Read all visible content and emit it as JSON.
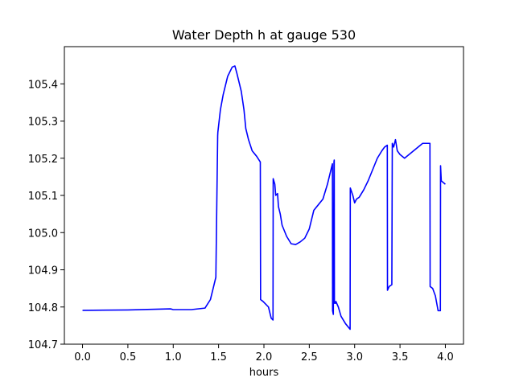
{
  "chart_data": {
    "type": "line",
    "title": "Water Depth h at gauge 530",
    "xlabel": "hours",
    "ylabel": "",
    "xlim": [
      -0.2,
      4.2
    ],
    "ylim": [
      104.7,
      105.5
    ],
    "xticks": [
      0.0,
      0.5,
      1.0,
      1.5,
      2.0,
      2.5,
      3.0,
      3.5,
      4.0
    ],
    "xtick_labels": [
      "0.0",
      "0.5",
      "1.0",
      "1.5",
      "2.0",
      "2.5",
      "3.0",
      "3.5",
      "4.0"
    ],
    "yticks": [
      104.7,
      104.8,
      104.9,
      105.0,
      105.1,
      105.2,
      105.3,
      105.4
    ],
    "ytick_labels": [
      "104.7",
      "104.8",
      "104.9",
      "105.0",
      "105.1",
      "105.2",
      "105.3",
      "105.4"
    ],
    "grid": false,
    "color": "#0000ff",
    "series": [
      {
        "x": [
          0.0,
          0.5,
          0.8,
          0.97,
          1.0,
          1.2,
          1.35,
          1.41,
          1.44,
          1.47,
          1.49,
          1.492,
          1.52,
          1.55,
          1.6,
          1.65,
          1.68,
          1.7,
          1.75,
          1.78,
          1.8,
          1.83,
          1.87,
          1.92,
          1.96,
          1.963,
          1.99,
          2.05,
          2.08,
          2.1,
          2.102,
          2.12,
          2.13,
          2.15,
          2.16,
          2.18,
          2.2,
          2.25,
          2.3,
          2.35,
          2.4,
          2.45,
          2.5,
          2.55,
          2.6,
          2.65,
          2.7,
          2.74,
          2.755,
          2.757,
          2.765,
          2.772,
          2.775,
          2.777,
          2.79,
          2.793,
          2.82,
          2.85,
          2.9,
          2.95,
          2.952,
          2.98,
          3.0,
          3.02,
          3.05,
          3.1,
          3.15,
          3.2,
          3.25,
          3.3,
          3.33,
          3.36,
          3.362,
          3.38,
          3.41,
          3.415,
          3.43,
          3.45,
          3.47,
          3.5,
          3.55,
          3.6,
          3.65,
          3.7,
          3.75,
          3.8,
          3.83,
          3.832,
          3.86,
          3.89,
          3.92,
          3.945,
          3.947,
          3.955,
          3.96,
          4.0
        ],
        "y": [
          104.791,
          104.792,
          104.794,
          104.795,
          104.793,
          104.793,
          104.797,
          104.82,
          104.85,
          104.88,
          105.26,
          105.27,
          105.33,
          105.37,
          105.42,
          105.445,
          105.448,
          105.43,
          105.38,
          105.33,
          105.28,
          105.25,
          105.22,
          105.205,
          105.19,
          104.82,
          104.815,
          104.8,
          104.77,
          104.765,
          105.145,
          105.13,
          105.1,
          105.105,
          105.07,
          105.05,
          105.02,
          104.99,
          104.97,
          104.968,
          104.975,
          104.985,
          105.01,
          105.06,
          105.075,
          105.09,
          105.13,
          105.17,
          105.185,
          104.79,
          104.78,
          105.19,
          105.195,
          104.81,
          104.81,
          104.815,
          104.8,
          104.775,
          104.755,
          104.74,
          105.12,
          105.1,
          105.08,
          105.09,
          105.095,
          105.115,
          105.14,
          105.17,
          105.2,
          105.22,
          105.23,
          105.235,
          104.845,
          104.855,
          104.86,
          105.24,
          105.23,
          105.25,
          105.22,
          105.21,
          105.2,
          105.21,
          105.22,
          105.23,
          105.24,
          105.24,
          105.24,
          104.855,
          104.85,
          104.83,
          104.79,
          104.79,
          105.18,
          105.14,
          105.138,
          105.13
        ]
      }
    ]
  }
}
